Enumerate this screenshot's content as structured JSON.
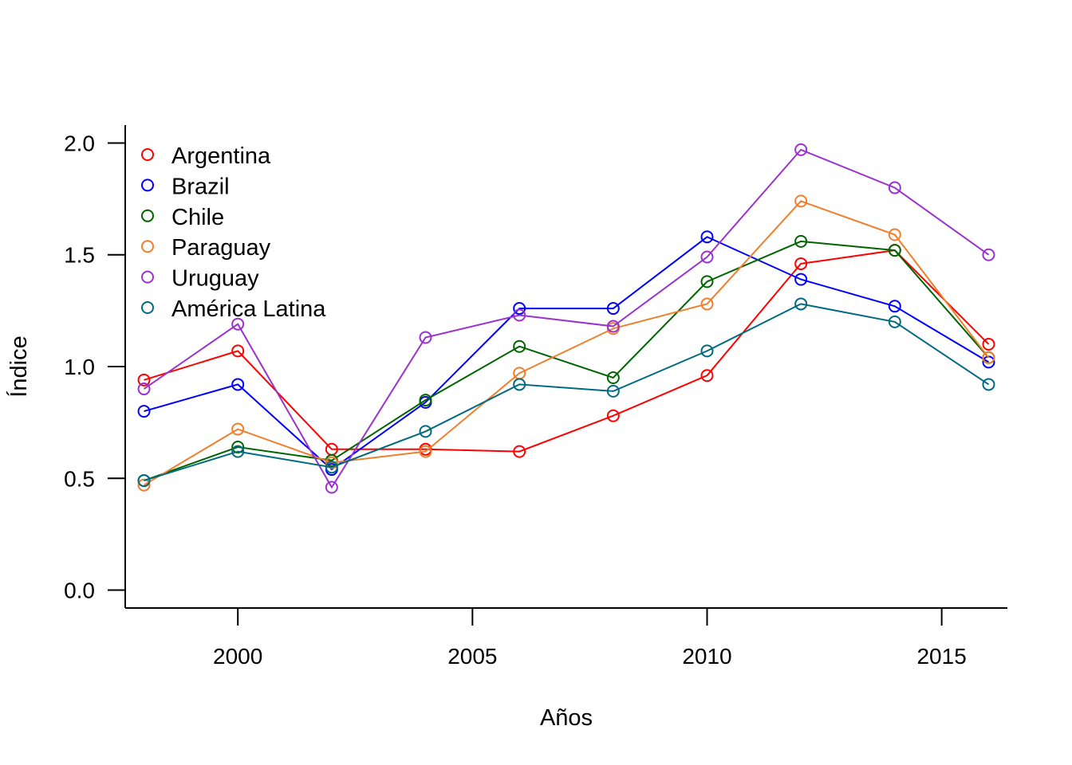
{
  "chart_data": {
    "type": "line",
    "title": "",
    "xlabel": "Años",
    "ylabel": "Índice",
    "x": [
      1998,
      2000,
      2002,
      2004,
      2006,
      2008,
      2010,
      2012,
      2014,
      2016
    ],
    "xlim": [
      1997.6,
      2016.4
    ],
    "ylim": [
      -0.08,
      2.08
    ],
    "xticks": [
      "2000",
      "2005",
      "2010",
      "2015"
    ],
    "yticks": [
      "0.0",
      "0.5",
      "1.0",
      "1.5",
      "2.0"
    ],
    "grid": false,
    "legend_position": "top-left",
    "series": [
      {
        "name": "Argentina",
        "color": "#ff0000",
        "values": [
          0.94,
          1.07,
          0.63,
          0.63,
          0.62,
          0.78,
          0.96,
          1.46,
          1.52,
          1.1
        ]
      },
      {
        "name": "Brazil",
        "color": "#0000ff",
        "values": [
          0.8,
          0.92,
          0.54,
          0.84,
          1.26,
          1.26,
          1.58,
          1.39,
          1.27,
          1.02
        ]
      },
      {
        "name": "Chile",
        "color": "#006400",
        "values": [
          0.49,
          0.64,
          0.58,
          0.85,
          1.09,
          0.95,
          1.38,
          1.56,
          1.52,
          1.04
        ]
      },
      {
        "name": "Paraguay",
        "color": "#ee7f2d",
        "values": [
          0.47,
          0.72,
          0.57,
          0.62,
          0.97,
          1.17,
          1.28,
          1.74,
          1.59,
          1.04
        ]
      },
      {
        "name": "Uruguay",
        "color": "#9a32cd",
        "values": [
          0.9,
          1.19,
          0.46,
          1.13,
          1.23,
          1.18,
          1.49,
          1.97,
          1.8,
          1.5
        ]
      },
      {
        "name": "América Latina",
        "color": "#006a80",
        "values": [
          0.49,
          0.62,
          0.55,
          0.71,
          0.92,
          0.89,
          1.07,
          1.28,
          1.2,
          0.92
        ]
      }
    ]
  }
}
